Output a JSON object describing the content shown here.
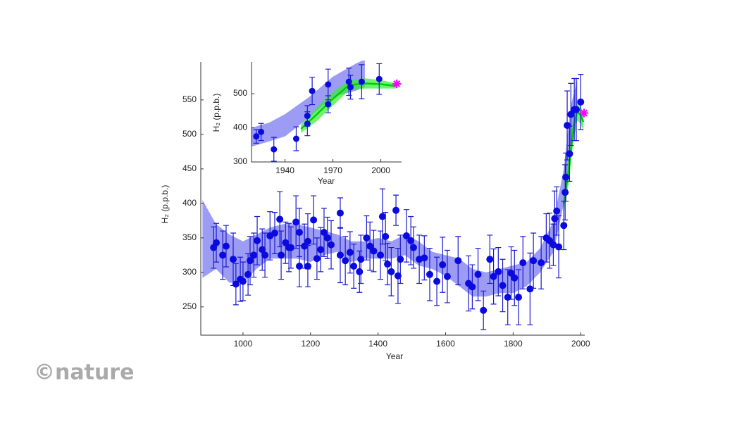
{
  "chart_data": [
    {
      "type": "scatter",
      "xlabel": "Year",
      "ylabel": "H₂ (p.p.b.)",
      "xlim": [
        875,
        2012
      ],
      "ylim": [
        209,
        605
      ],
      "xticks": [
        1000,
        1200,
        1400,
        1600,
        1800,
        2000
      ],
      "yticks": [
        250,
        300,
        350,
        400,
        450,
        500,
        550
      ],
      "color": "#0a0ae0",
      "x": [
        913,
        921,
        940,
        950,
        971,
        979,
        992,
        1000,
        1015,
        1021,
        1032,
        1042,
        1057,
        1065,
        1080,
        1094,
        1109,
        1113,
        1126,
        1136,
        1142,
        1157,
        1167,
        1167,
        1182,
        1192,
        1192,
        1209,
        1219,
        1230,
        1240,
        1250,
        1261,
        1288,
        1288,
        1303,
        1317,
        1328,
        1345,
        1349,
        1366,
        1376,
        1387,
        1407,
        1413,
        1422,
        1428,
        1439,
        1453,
        1459,
        1466,
        1484,
        1497,
        1505,
        1522,
        1537,
        1553,
        1574,
        1591,
        1605,
        1637,
        1668,
        1679,
        1696,
        1712,
        1731,
        1742,
        1756,
        1769,
        1784,
        1794,
        1804,
        1816,
        1829,
        1850,
        1860,
        1883,
        1898,
        1908,
        1919,
        1923,
        1929,
        1935,
        1950,
        1954,
        1956,
        1960,
        1967,
        1971,
        1981,
        1987,
        2000
      ],
      "values": [
        336,
        343,
        325,
        338,
        319,
        283,
        290,
        287,
        297,
        317,
        325,
        346,
        333,
        325,
        353,
        357,
        377,
        325,
        343,
        336,
        336,
        373,
        358,
        309,
        338,
        345,
        309,
        376,
        320,
        333,
        358,
        350,
        340,
        386,
        325,
        317,
        329,
        309,
        301,
        319,
        350,
        338,
        331,
        325,
        381,
        352,
        312,
        301,
        390,
        295,
        319,
        353,
        346,
        336,
        319,
        321,
        297,
        287,
        311,
        294,
        317,
        284,
        279,
        297,
        245,
        319,
        294,
        301,
        281,
        264,
        299,
        292,
        264,
        314,
        276,
        317,
        314,
        350,
        346,
        340,
        378,
        389,
        337,
        368,
        416,
        438,
        513,
        472,
        529,
        536,
        536,
        547
      ],
      "errors": [
        30,
        28,
        35,
        30,
        38,
        30,
        32,
        28,
        30,
        35,
        32,
        35,
        30,
        32,
        35,
        30,
        40,
        35,
        30,
        35,
        30,
        38,
        35,
        30,
        32,
        40,
        30,
        35,
        30,
        32,
        35,
        30,
        35,
        22,
        40,
        35,
        30,
        32,
        30,
        35,
        32,
        35,
        30,
        35,
        40,
        35,
        30,
        35,
        22,
        40,
        35,
        38,
        35,
        30,
        35,
        32,
        38,
        35,
        40,
        38,
        35,
        40,
        32,
        38,
        28,
        35,
        40,
        35,
        38,
        40,
        38,
        40,
        40,
        38,
        52,
        40,
        38,
        35,
        40,
        30,
        40,
        35,
        45,
        35,
        40,
        35,
        50,
        40,
        45,
        45,
        45,
        40
      ],
      "bands": [
        {
          "color": "#7b7bf0",
          "x": [
            880,
            920,
            960,
            1000,
            1040,
            1080,
            1120,
            1160,
            1200,
            1240,
            1280,
            1320,
            1360,
            1400,
            1440,
            1480,
            1520,
            1560,
            1600,
            1640,
            1680,
            1720,
            1760,
            1800,
            1840,
            1880,
            1920,
            1950,
            1970,
            1990
          ],
          "lower": [
            292,
            305,
            285,
            285,
            305,
            320,
            320,
            320,
            315,
            325,
            330,
            315,
            320,
            320,
            320,
            325,
            310,
            305,
            295,
            280,
            265,
            265,
            270,
            270,
            280,
            300,
            330,
            400,
            470,
            520
          ],
          "upper": [
            405,
            370,
            355,
            345,
            355,
            365,
            370,
            370,
            365,
            360,
            355,
            345,
            345,
            350,
            345,
            355,
            345,
            330,
            325,
            320,
            305,
            300,
            305,
            310,
            315,
            335,
            375,
            450,
            540,
            580
          ]
        },
        {
          "color": "#33ee33",
          "x": [
            1950,
            1965,
            1980,
            1990,
            2000,
            2008
          ],
          "lower": [
            385,
            430,
            500,
            520,
            515,
            505
          ],
          "upper": [
            415,
            470,
            530,
            545,
            540,
            530
          ]
        }
      ],
      "lines": [
        {
          "color": "#00cc00",
          "x": [
            1950,
            1965,
            1980,
            1990,
            2000,
            2008
          ],
          "values": [
            400,
            450,
            515,
            533,
            528,
            518
          ]
        }
      ],
      "markers": [
        {
          "color": "#ff00ff",
          "x": 2010,
          "value": 531
        }
      ]
    },
    {
      "type": "scatter",
      "xlabel": "Year",
      "ylabel": "H₂ (p.p.b.)",
      "xlim": [
        1919,
        2013
      ],
      "ylim": [
        300,
        593
      ],
      "xticks": [
        1940,
        1970,
        2000
      ],
      "yticks": [
        300,
        400,
        500
      ],
      "color": "#0a0ae0",
      "x": [
        1922,
        1925,
        1933,
        1947,
        1954,
        1954,
        1957,
        1967,
        1967,
        1980,
        1981,
        1988,
        1999
      ],
      "values": [
        375,
        388,
        337,
        368,
        412,
        435,
        508,
        469,
        527,
        535,
        519,
        535,
        543
      ],
      "errors": [
        20,
        25,
        35,
        35,
        35,
        30,
        40,
        25,
        45,
        40,
        35,
        50,
        45
      ],
      "bands": [
        {
          "color": "#7b7bf0",
          "x": [
            1919,
            1930,
            1940,
            1955,
            1970,
            1985,
            1990
          ],
          "lower": [
            345,
            360,
            375,
            430,
            490,
            510,
            520
          ],
          "upper": [
            400,
            415,
            440,
            490,
            550,
            590,
            600
          ]
        },
        {
          "color": "#33ee33",
          "x": [
            1950,
            1960,
            1970,
            1980,
            1990,
            2000,
            2010
          ],
          "lower": [
            385,
            420,
            465,
            510,
            515,
            515,
            515
          ],
          "upper": [
            410,
            460,
            505,
            540,
            545,
            540,
            530
          ]
        }
      ],
      "lines": [
        {
          "color": "#00cc00",
          "x": [
            1950,
            1960,
            1970,
            1980,
            1990,
            2000,
            2010
          ],
          "values": [
            397,
            440,
            485,
            525,
            530,
            528,
            522
          ]
        }
      ],
      "markers": [
        {
          "color": "#ff00ff",
          "x": 2010,
          "value": 529
        }
      ]
    }
  ],
  "watermark": "©nature"
}
